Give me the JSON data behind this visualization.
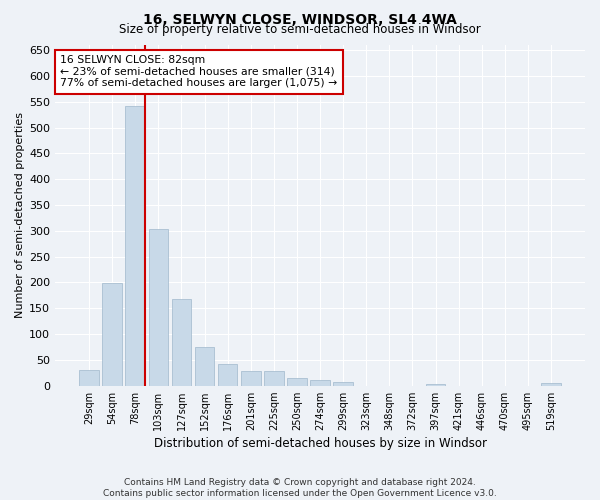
{
  "title": "16, SELWYN CLOSE, WINDSOR, SL4 4WA",
  "subtitle": "Size of property relative to semi-detached houses in Windsor",
  "xlabel": "Distribution of semi-detached houses by size in Windsor",
  "ylabel": "Number of semi-detached properties",
  "categories": [
    "29sqm",
    "54sqm",
    "78sqm",
    "103sqm",
    "127sqm",
    "152sqm",
    "176sqm",
    "201sqm",
    "225sqm",
    "250sqm",
    "274sqm",
    "299sqm",
    "323sqm",
    "348sqm",
    "372sqm",
    "397sqm",
    "421sqm",
    "446sqm",
    "470sqm",
    "495sqm",
    "519sqm"
  ],
  "values": [
    30,
    199,
    541,
    303,
    167,
    74,
    42,
    29,
    29,
    15,
    12,
    7,
    0,
    0,
    0,
    4,
    0,
    0,
    0,
    0,
    5
  ],
  "bar_color": "#c8d9e8",
  "bar_edge_color": "#a0b8cc",
  "property_line_index": 2,
  "property_line_color": "#cc0000",
  "annotation_title": "16 SELWYN CLOSE: 82sqm",
  "annotation_line1": "← 23% of semi-detached houses are smaller (314)",
  "annotation_line2": "77% of semi-detached houses are larger (1,075) →",
  "annotation_box_color": "#cc0000",
  "ylim": [
    0,
    660
  ],
  "yticks": [
    0,
    50,
    100,
    150,
    200,
    250,
    300,
    350,
    400,
    450,
    500,
    550,
    600,
    650
  ],
  "footnote1": "Contains HM Land Registry data © Crown copyright and database right 2024.",
  "footnote2": "Contains public sector information licensed under the Open Government Licence v3.0.",
  "background_color": "#eef2f7",
  "plot_background_color": "#eef2f7"
}
